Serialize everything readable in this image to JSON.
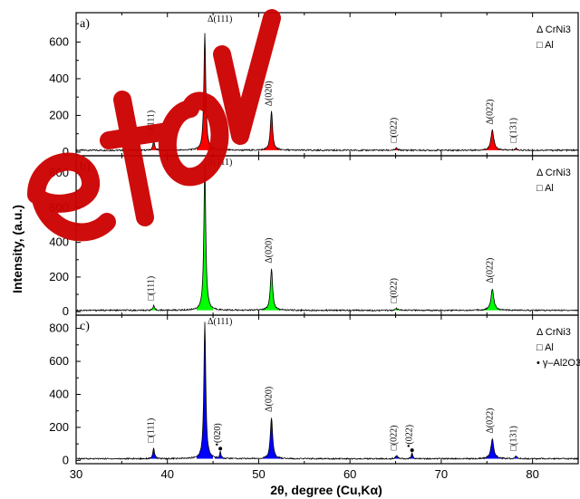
{
  "chart_data": {
    "type": "line",
    "xlabel": "2θ, degree (Cu,Kα)",
    "ylabel": "Intensity, (a.u.)",
    "xlim": [
      30,
      85
    ],
    "x_ticks": [
      "30",
      "40",
      "50",
      "60",
      "70",
      "80"
    ],
    "y_ticks": [
      "0",
      "200",
      "400",
      "600",
      "800"
    ],
    "panels": [
      {
        "label": "a)",
        "color": "#ff0000",
        "ylim": [
          -20,
          760
        ],
        "baseline": 10,
        "legend": [
          "Δ CrNi3",
          "□ Al"
        ],
        "peaks": [
          {
            "x": 38.5,
            "height": 55,
            "width": 0.25,
            "label": "□(111)",
            "marker": "none"
          },
          {
            "x": 44.1,
            "height": 640,
            "width": 0.3,
            "label": "Δ(111)",
            "marker": "none"
          },
          {
            "x": 51.4,
            "height": 210,
            "width": 0.35,
            "label": "Δ(020)",
            "marker": "none"
          },
          {
            "x": 65.1,
            "height": 12,
            "width": 0.3,
            "label": "□(022)",
            "marker": "none"
          },
          {
            "x": 75.6,
            "height": 110,
            "width": 0.45,
            "label": "Δ(022)",
            "marker": "none"
          },
          {
            "x": 78.2,
            "height": 10,
            "width": 0.3,
            "label": "□(131)",
            "marker": "none"
          }
        ]
      },
      {
        "label": "b)",
        "color": "#00ff00",
        "ylim": [
          -20,
          900
        ],
        "baseline": 8,
        "legend": [
          "Δ CrNi3",
          "□ Al"
        ],
        "peaks": [
          {
            "x": 38.5,
            "height": 25,
            "width": 0.25,
            "label": "□(111)",
            "marker": "none"
          },
          {
            "x": 44.1,
            "height": 840,
            "width": 0.3,
            "label": "Δ(111)",
            "marker": "none"
          },
          {
            "x": 51.4,
            "height": 240,
            "width": 0.35,
            "label": "Δ(020)",
            "marker": "none"
          },
          {
            "x": 65.1,
            "height": 10,
            "width": 0.3,
            "label": "□(022)",
            "marker": "none"
          },
          {
            "x": 75.6,
            "height": 125,
            "width": 0.45,
            "label": "Δ(022)",
            "marker": "none"
          }
        ]
      },
      {
        "label": "c)",
        "color": "#0000ff",
        "ylim": [
          -20,
          880
        ],
        "baseline": 10,
        "legend": [
          "Δ CrNi3",
          "□ Al",
          "• γ–Al2O3"
        ],
        "peaks": [
          {
            "x": 38.5,
            "height": 65,
            "width": 0.25,
            "label": "□(111)",
            "marker": "none"
          },
          {
            "x": 44.1,
            "height": 830,
            "width": 0.3,
            "label": "Δ(111)",
            "marker": "none"
          },
          {
            "x": 45.8,
            "height": 40,
            "width": 0.2,
            "label": "•(020)",
            "marker": "dot"
          },
          {
            "x": 51.4,
            "height": 250,
            "width": 0.35,
            "label": "Δ(020)",
            "marker": "none"
          },
          {
            "x": 65.1,
            "height": 18,
            "width": 0.3,
            "label": "□(022)",
            "marker": "none"
          },
          {
            "x": 66.8,
            "height": 35,
            "width": 0.2,
            "label": "•(022)",
            "marker": "dot"
          },
          {
            "x": 75.6,
            "height": 120,
            "width": 0.45,
            "label": "Δ(022)",
            "marker": "none"
          },
          {
            "x": 78.2,
            "height": 14,
            "width": 0.3,
            "label": "□(131)",
            "marker": "none"
          }
        ]
      }
    ]
  },
  "watermark": {
    "color": "#cc0000",
    "text": "etov"
  }
}
